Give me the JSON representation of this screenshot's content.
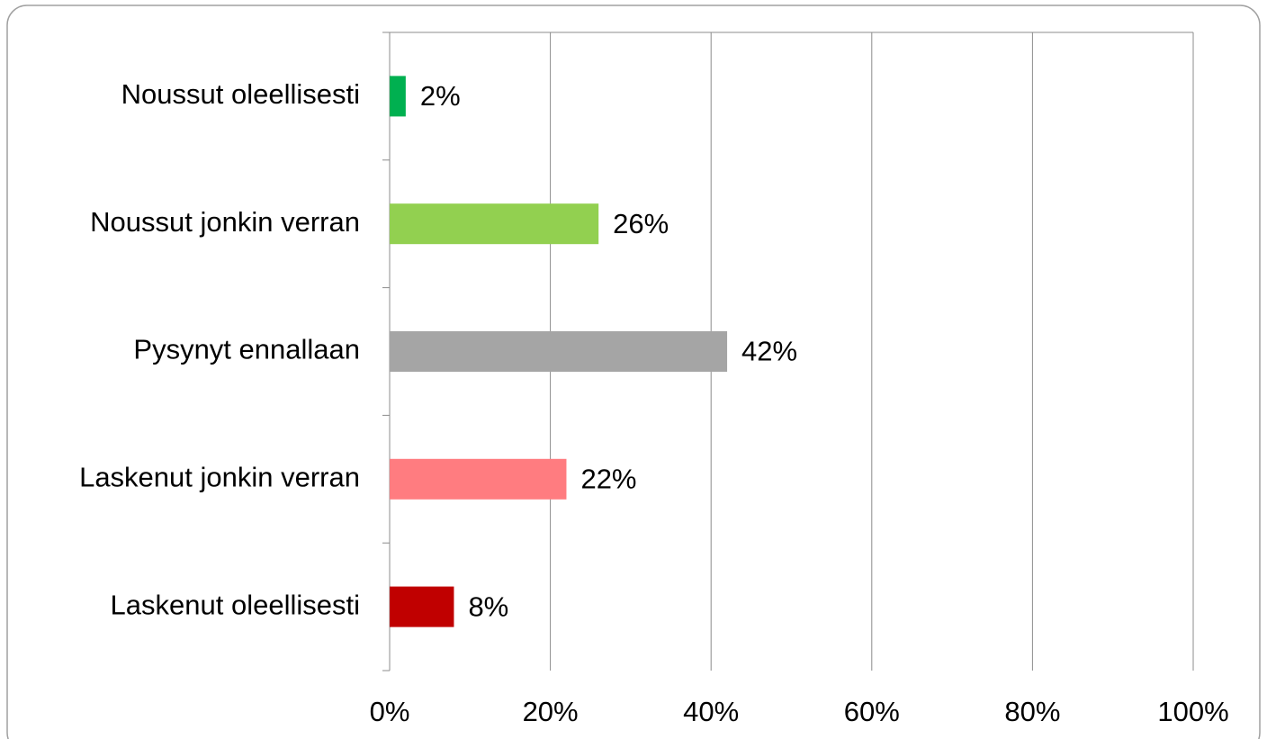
{
  "chart_data": {
    "type": "barh",
    "categories": [
      "Noussut oleellisesti",
      "Noussut jonkin verran",
      "Pysynyt ennallaan",
      "Laskenut jonkin verran",
      "Laskenut oleellisesti"
    ],
    "values": [
      2,
      26,
      42,
      22,
      8
    ],
    "value_labels": [
      "2%",
      "26%",
      "42%",
      "22%",
      "8%"
    ],
    "colors": [
      "#00b050",
      "#92d050",
      "#a5a5a5",
      "#ff7c80",
      "#c00000"
    ],
    "xlim": [
      0,
      100
    ],
    "xticks": [
      {
        "value": 0,
        "label": "0%"
      },
      {
        "value": 20,
        "label": "20%"
      },
      {
        "value": 40,
        "label": "40%"
      },
      {
        "value": 60,
        "label": "60%"
      },
      {
        "value": 80,
        "label": "80%"
      },
      {
        "value": 100,
        "label": "100%"
      }
    ],
    "grid": true
  }
}
